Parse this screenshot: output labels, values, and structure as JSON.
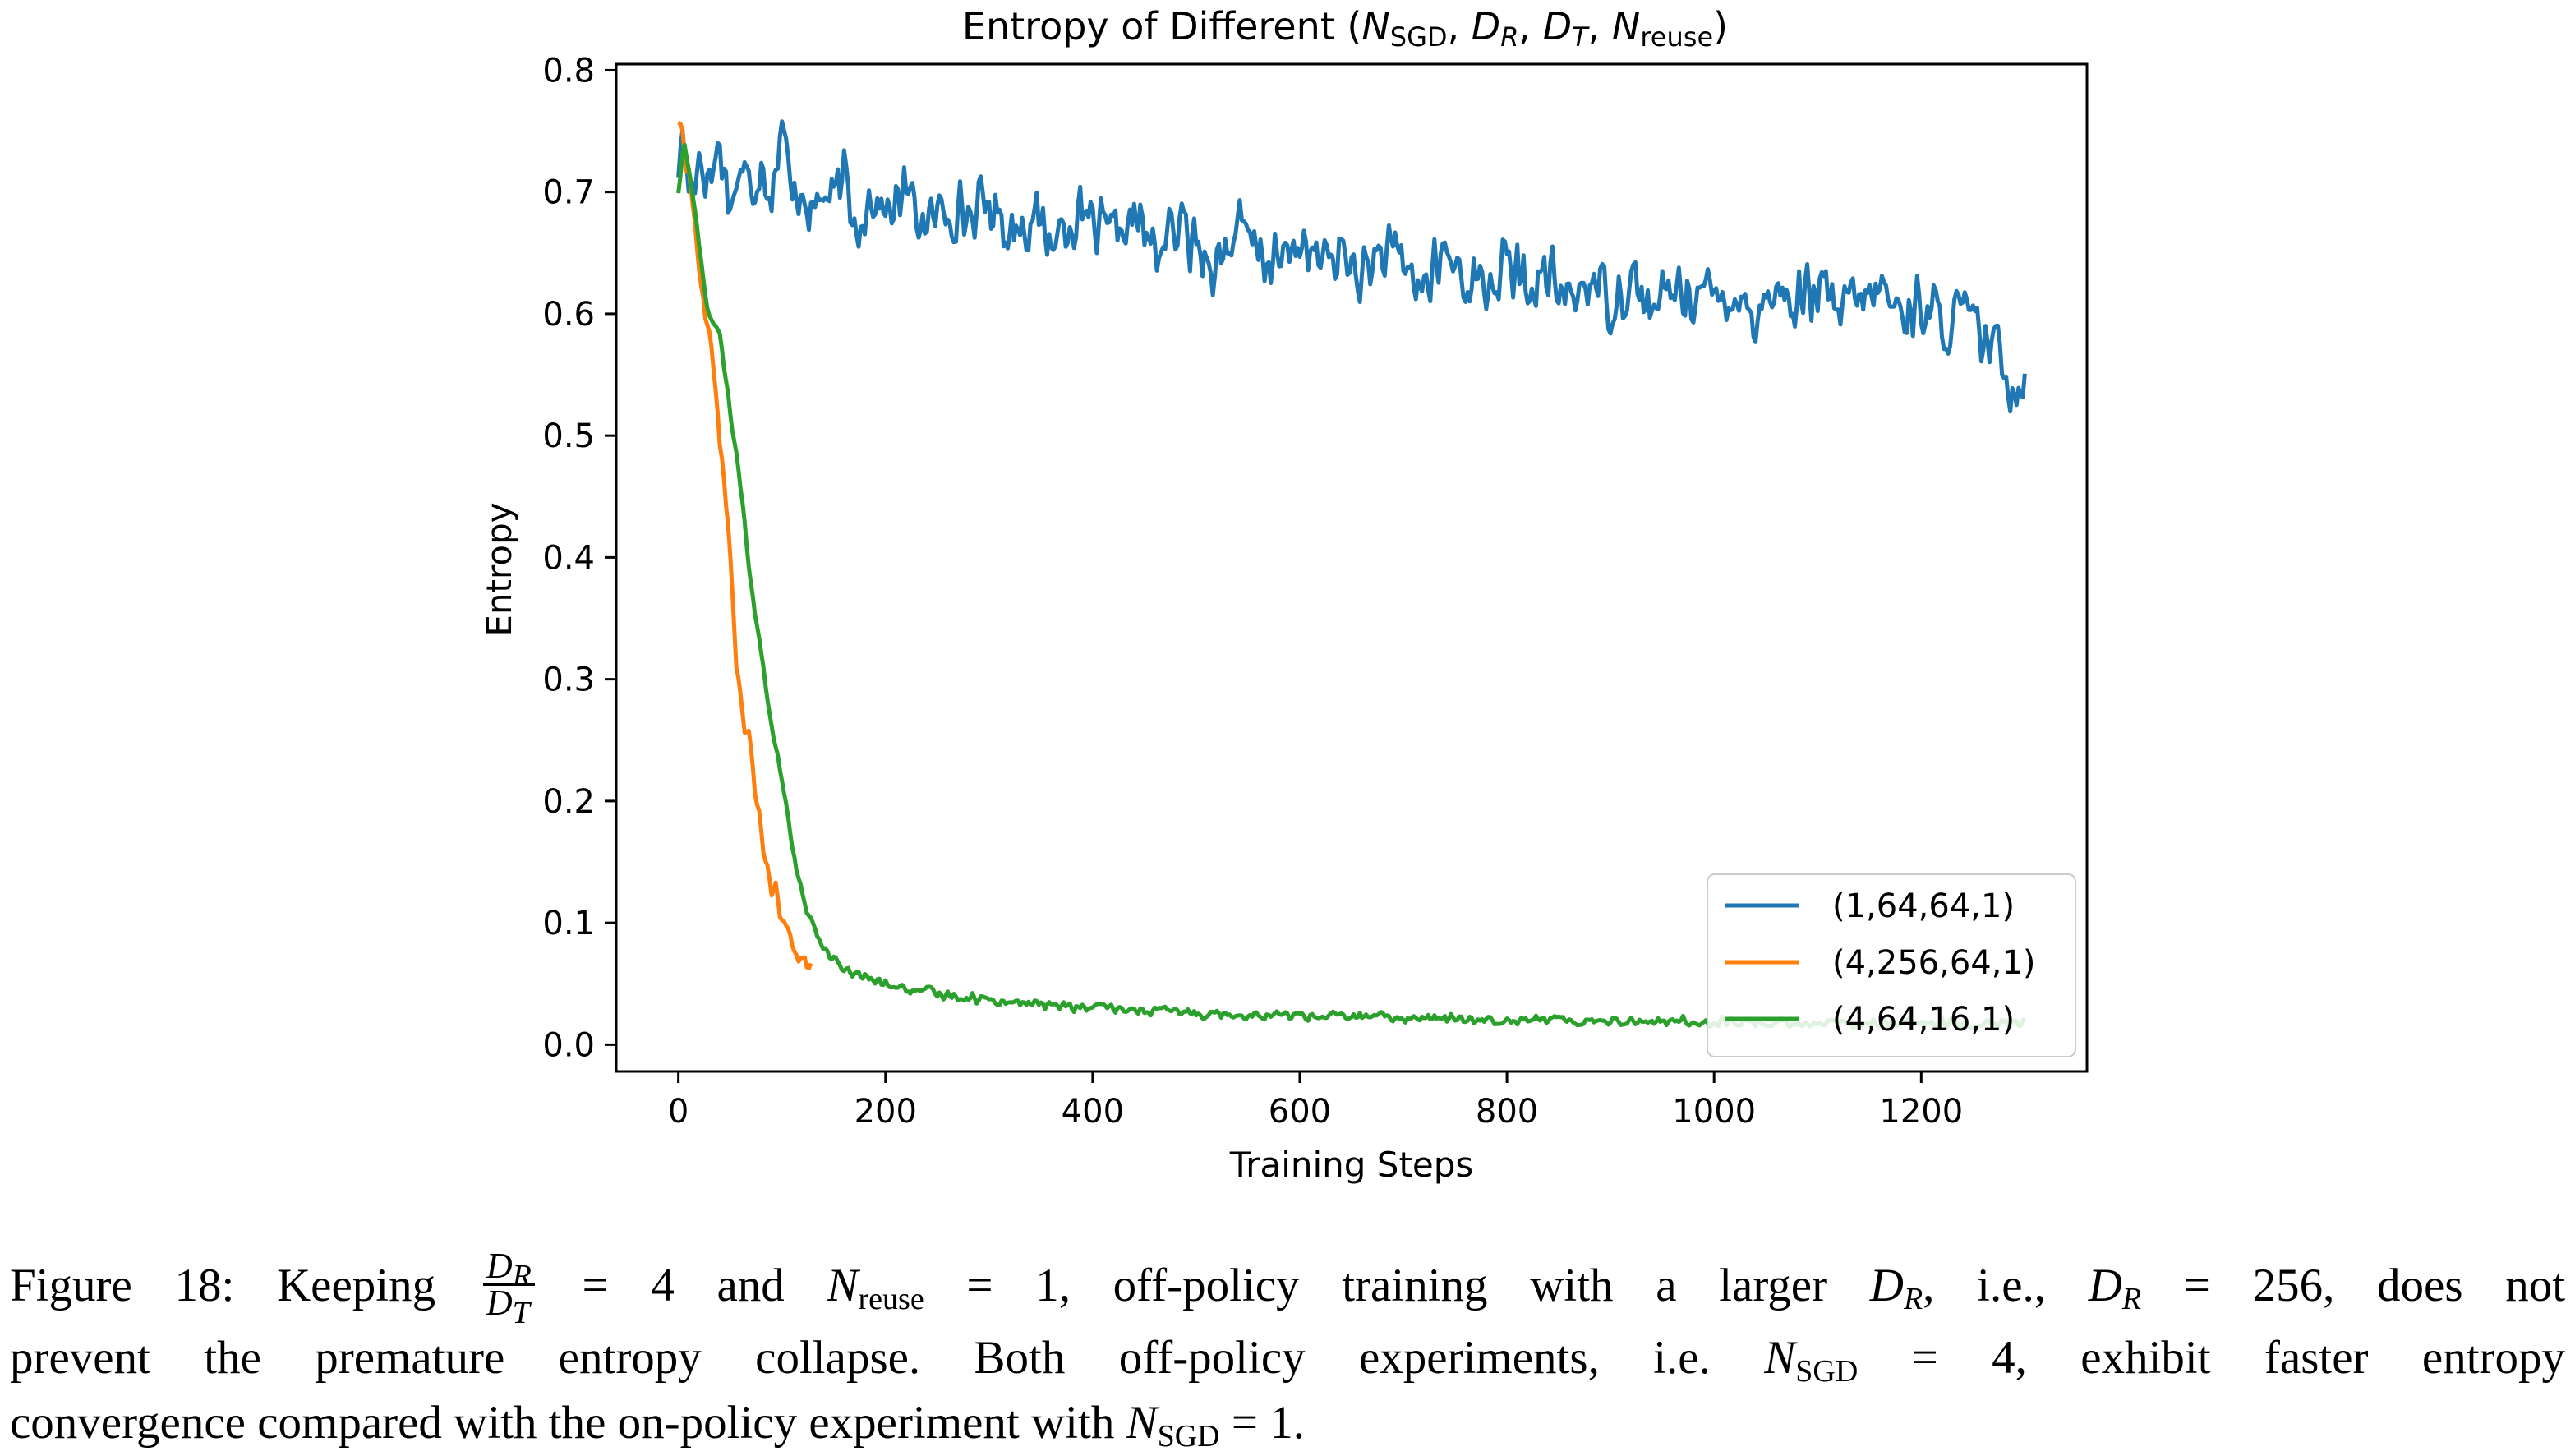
{
  "chart_data": {
    "type": "line",
    "title": "Entropy of  Different (N_SGD, D_R, D_T, N_reuse)",
    "title_parts": {
      "prefix": "Entropy of  Different (",
      "n1": "N",
      "n1_sub": "SGD",
      "n2": "D",
      "n2_sub": "R",
      "n3": "D",
      "n3_sub": "T",
      "n4": "N",
      "n4_sub": "reuse",
      "suffix": ")"
    },
    "xlabel": "Training Steps",
    "ylabel": "Entropy",
    "xlim": [
      -60,
      1360
    ],
    "ylim": [
      -0.022,
      0.805
    ],
    "xticks": [
      0,
      200,
      400,
      600,
      800,
      1000,
      1200
    ],
    "xtick_labels": [
      "0",
      "200",
      "400",
      "600",
      "800",
      "1000",
      "1200"
    ],
    "yticks": [
      0.0,
      0.1,
      0.2,
      0.3,
      0.4,
      0.5,
      0.6,
      0.7,
      0.8
    ],
    "ytick_labels": [
      "0.0",
      "0.1",
      "0.2",
      "0.3",
      "0.4",
      "0.5",
      "0.6",
      "0.7",
      "0.8"
    ],
    "grid": false,
    "legend_position": "lower-right",
    "series": [
      {
        "name": "(1,64,64,1)",
        "color": "#1f77b4",
        "x": [
          0,
          5,
          10,
          20,
          30,
          40,
          50,
          60,
          70,
          80,
          90,
          100,
          105,
          110,
          120,
          130,
          140,
          150,
          160,
          170,
          180,
          190,
          200,
          220,
          240,
          260,
          280,
          300,
          320,
          340,
          360,
          380,
          400,
          420,
          440,
          460,
          480,
          500,
          520,
          540,
          560,
          580,
          600,
          620,
          640,
          660,
          680,
          700,
          720,
          740,
          760,
          780,
          800,
          820,
          840,
          860,
          880,
          900,
          920,
          940,
          960,
          980,
          1000,
          1020,
          1040,
          1060,
          1080,
          1100,
          1120,
          1140,
          1160,
          1180,
          1200,
          1220,
          1240,
          1260,
          1270,
          1280,
          1290,
          1300
        ],
        "y": [
          0.72,
          0.75,
          0.7,
          0.73,
          0.71,
          0.74,
          0.69,
          0.72,
          0.7,
          0.73,
          0.7,
          0.76,
          0.72,
          0.69,
          0.71,
          0.68,
          0.7,
          0.69,
          0.71,
          0.67,
          0.69,
          0.7,
          0.68,
          0.7,
          0.67,
          0.69,
          0.68,
          0.69,
          0.67,
          0.68,
          0.66,
          0.68,
          0.67,
          0.66,
          0.68,
          0.65,
          0.67,
          0.66,
          0.64,
          0.67,
          0.65,
          0.64,
          0.66,
          0.64,
          0.65,
          0.63,
          0.65,
          0.64,
          0.62,
          0.65,
          0.63,
          0.62,
          0.64,
          0.62,
          0.63,
          0.61,
          0.63,
          0.61,
          0.63,
          0.6,
          0.62,
          0.62,
          0.61,
          0.62,
          0.6,
          0.62,
          0.61,
          0.62,
          0.6,
          0.61,
          0.62,
          0.6,
          0.61,
          0.59,
          0.6,
          0.58,
          0.57,
          0.56,
          0.54,
          0.55
        ],
        "noise_amplitude": 0.03
      },
      {
        "name": "(4,256,64,1)",
        "color": "#ff7f0e",
        "x": [
          0,
          5,
          10,
          15,
          20,
          25,
          30,
          35,
          40,
          45,
          50,
          55,
          60,
          65,
          70,
          75,
          80,
          85,
          90,
          95,
          100,
          105,
          110,
          115,
          120,
          125,
          128
        ],
        "y": [
          0.76,
          0.74,
          0.72,
          0.68,
          0.64,
          0.6,
          0.58,
          0.55,
          0.5,
          0.45,
          0.4,
          0.33,
          0.28,
          0.26,
          0.24,
          0.2,
          0.17,
          0.15,
          0.13,
          0.12,
          0.1,
          0.09,
          0.085,
          0.08,
          0.07,
          0.065,
          0.06
        ],
        "noise_amplitude": 0.012
      },
      {
        "name": "(4,64,16,1)",
        "color": "#2ca02c",
        "x": [
          0,
          5,
          10,
          15,
          20,
          25,
          30,
          40,
          50,
          60,
          70,
          80,
          90,
          100,
          110,
          120,
          130,
          140,
          150,
          160,
          180,
          200,
          220,
          250,
          300,
          350,
          400,
          450,
          500,
          550,
          600,
          650,
          700,
          750,
          800,
          850,
          900,
          950,
          1000,
          1050,
          1100,
          1150,
          1200,
          1250,
          1300
        ],
        "y": [
          0.7,
          0.74,
          0.72,
          0.69,
          0.66,
          0.62,
          0.6,
          0.58,
          0.52,
          0.46,
          0.38,
          0.32,
          0.26,
          0.22,
          0.16,
          0.12,
          0.1,
          0.08,
          0.07,
          0.06,
          0.055,
          0.05,
          0.045,
          0.042,
          0.037,
          0.033,
          0.03,
          0.028,
          0.026,
          0.025,
          0.024,
          0.023,
          0.022,
          0.021,
          0.021,
          0.02,
          0.02,
          0.019,
          0.019,
          0.018,
          0.018,
          0.018,
          0.017,
          0.017,
          0.017
        ],
        "noise_amplitude": 0.005
      }
    ]
  },
  "caption": {
    "line1": {
      "lead": "Figure 18: Keeping",
      "frac_num": "D",
      "frac_num_sub": "R",
      "frac_den": "D",
      "frac_den_sub": "T",
      "eq1": "= 4 and",
      "n": "N",
      "n_sub": "reuse",
      "eq2": "= 1, off-policy training with a larger",
      "d1": "D",
      "d1_sub": "R",
      "ie": ", i.e.,",
      "d2": "D",
      "d2_sub": "R",
      "tail": "= 256, does not"
    },
    "line2": {
      "lead": "prevent the premature entropy collapse. Both off-policy experiments, i.e.",
      "n": "N",
      "n_sub": "SGD",
      "tail": "= 4, exhibit faster entropy"
    },
    "line3": {
      "lead": "convergence compared with the on-policy experiment with",
      "n": "N",
      "n_sub": "SGD",
      "tail": "= 1."
    }
  }
}
